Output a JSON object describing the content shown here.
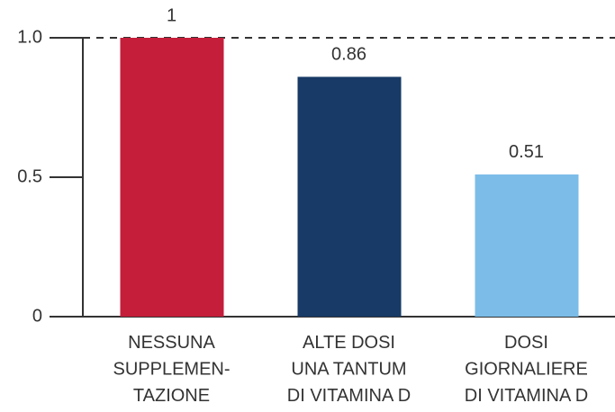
{
  "chart_data": {
    "type": "bar",
    "categories": [
      [
        "NESSUNA",
        "SUPPLEMEN-",
        "TAZIONE"
      ],
      [
        "ALTE DOSI",
        "UNA TANTUM",
        "DI VITAMINA D"
      ],
      [
        "DOSI",
        "GIORNALIERE",
        "DI VITAMINA D"
      ]
    ],
    "values": [
      1,
      0.86,
      0.51
    ],
    "colors": [
      "#c41e3a",
      "#173a66",
      "#7bbde8"
    ],
    "ylim": [
      0,
      1
    ],
    "yticks": [
      0,
      0.5,
      {
        "value": 1,
        "label": "1.0"
      }
    ],
    "reference_line": 1
  }
}
